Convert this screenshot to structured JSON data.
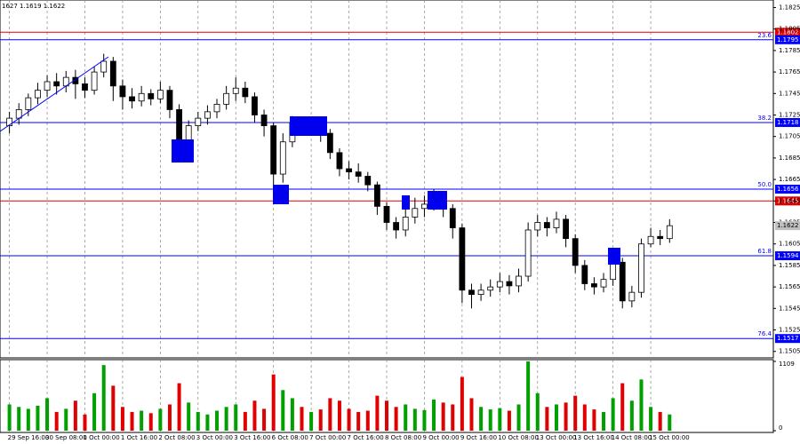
{
  "chart_data": {
    "type": "candlestick",
    "header": "1627 1.1619 1.1622",
    "up_color": "#ffffff",
    "down_color": "#000000",
    "wick_color": "#000000",
    "volume_up_color": "#00a000",
    "volume_down_color": "#e00000",
    "xlim": [
      -1,
      81
    ],
    "xticks": [
      {
        "value": 0,
        "label": "29 Sep 16:00"
      },
      {
        "value": 4,
        "label": "30 Sep 08:00"
      },
      {
        "value": 8,
        "label": "1 Oct 00:00"
      },
      {
        "value": 12,
        "label": "1 Oct 16:00"
      },
      {
        "value": 16,
        "label": "2 Oct 08:00"
      },
      {
        "value": 20,
        "label": "3 Oct 00:00"
      },
      {
        "value": 24,
        "label": "3 Oct 16:00"
      },
      {
        "value": 28,
        "label": "6 Oct 08:00"
      },
      {
        "value": 32,
        "label": "7 Oct 00:00"
      },
      {
        "value": 36,
        "label": "7 Oct 16:00"
      },
      {
        "value": 40,
        "label": "8 Oct 08:00"
      },
      {
        "value": 44,
        "label": "9 Oct 00:00"
      },
      {
        "value": 48,
        "label": "9 Oct 16:00"
      },
      {
        "value": 52,
        "label": "10 Oct 08:00"
      },
      {
        "value": 56,
        "label": "13 Oct 00:00"
      },
      {
        "value": 60,
        "label": "13 Oct 16:00"
      },
      {
        "value": 64,
        "label": "14 Oct 08:00"
      },
      {
        "value": 68,
        "label": "15 Oct 00:00"
      }
    ],
    "ylim": [
      1.1499,
      1.1832
    ],
    "yticks": [
      1.1505,
      1.1525,
      1.1545,
      1.1565,
      1.1585,
      1.1605,
      1.1625,
      1.1645,
      1.1665,
      1.1685,
      1.1705,
      1.1725,
      1.1745,
      1.1765,
      1.1785,
      1.1805,
      1.1825
    ],
    "levels": [
      {
        "price": 1.1802,
        "color": "#e00000"
      },
      {
        "price": 1.1795,
        "fib": "23.6",
        "color": "#0000ff"
      },
      {
        "price": 1.1718,
        "fib": "38.2",
        "color": "#0000ff"
      },
      {
        "price": 1.1656,
        "fib": "50.0",
        "color": "#0000ff"
      },
      {
        "price": 1.1645,
        "color": "#e00000"
      },
      {
        "price": 1.1594,
        "fib": "61.8",
        "color": "#0000ff"
      },
      {
        "price": 1.1517,
        "fib": "76.4",
        "color": "#0000ff"
      }
    ],
    "last": 1.1622,
    "open": [
      1.1715,
      1.1722,
      1.173,
      1.1741,
      1.1748,
      1.1756,
      1.1752,
      1.176,
      1.1754,
      1.1748,
      1.1765,
      1.1775,
      1.1752,
      1.1742,
      1.1738,
      1.1745,
      1.174,
      1.1748,
      1.173,
      1.1698,
      1.1715,
      1.1722,
      1.1728,
      1.1735,
      1.1745,
      1.175,
      1.1742,
      1.1725,
      1.1715,
      1.167,
      1.17,
      1.1718,
      1.1712,
      1.1714,
      1.1708,
      1.169,
      1.1675,
      1.1672,
      1.1668,
      1.166,
      1.164,
      1.1625,
      1.1618,
      1.163,
      1.1638,
      1.1642,
      1.165,
      1.1638,
      1.162,
      1.1562,
      1.1558,
      1.1562,
      1.1565,
      1.157,
      1.1566,
      1.1575,
      1.1618,
      1.1625,
      1.162,
      1.1628,
      1.161,
      1.1585,
      1.1568,
      1.1565,
      1.1572,
      1.1588,
      1.1552,
      1.156,
      1.1605,
      1.1612,
      1.161
    ],
    "high": [
      1.1728,
      1.1736,
      1.1745,
      1.1755,
      1.1762,
      1.1764,
      1.1766,
      1.1767,
      1.176,
      1.177,
      1.1782,
      1.1779,
      1.1758,
      1.175,
      1.1752,
      1.1749,
      1.1756,
      1.1752,
      1.1735,
      1.172,
      1.1728,
      1.1734,
      1.174,
      1.1752,
      1.176,
      1.1756,
      1.1746,
      1.173,
      1.1718,
      1.1708,
      1.1724,
      1.1722,
      1.172,
      1.1719,
      1.1712,
      1.1694,
      1.1682,
      1.168,
      1.1672,
      1.1663,
      1.1644,
      1.163,
      1.164,
      1.1648,
      1.165,
      1.1656,
      1.1654,
      1.1642,
      1.1624,
      1.1568,
      1.1568,
      1.1572,
      1.1578,
      1.1576,
      1.1582,
      1.1625,
      1.1632,
      1.163,
      1.1635,
      1.1632,
      1.1614,
      1.159,
      1.1574,
      1.1578,
      1.1595,
      1.1592,
      1.1566,
      1.161,
      1.162,
      1.1618,
      1.1628
    ],
    "low": [
      1.1708,
      1.1716,
      1.1724,
      1.1735,
      1.1742,
      1.1744,
      1.1746,
      1.174,
      1.1741,
      1.1744,
      1.176,
      1.1738,
      1.173,
      1.1731,
      1.1733,
      1.1734,
      1.1736,
      1.1722,
      1.169,
      1.1694,
      1.171,
      1.1716,
      1.1722,
      1.173,
      1.1738,
      1.1736,
      1.1718,
      1.1705,
      1.165,
      1.1662,
      1.1695,
      1.1706,
      1.1706,
      1.17,
      1.1684,
      1.1668,
      1.1665,
      1.1662,
      1.1654,
      1.1632,
      1.1618,
      1.161,
      1.1612,
      1.1624,
      1.163,
      1.1636,
      1.163,
      1.161,
      1.155,
      1.1545,
      1.1552,
      1.1556,
      1.156,
      1.1558,
      1.156,
      1.157,
      1.1612,
      1.1612,
      1.1615,
      1.1602,
      1.1578,
      1.1562,
      1.1558,
      1.156,
      1.1566,
      1.1545,
      1.1546,
      1.1555,
      1.1602,
      1.1604,
      1.1606
    ],
    "close": [
      1.1722,
      1.173,
      1.1741,
      1.1748,
      1.1756,
      1.1752,
      1.176,
      1.1754,
      1.1748,
      1.1765,
      1.1775,
      1.1752,
      1.1742,
      1.1738,
      1.1745,
      1.174,
      1.1748,
      1.173,
      1.1698,
      1.1715,
      1.1722,
      1.1728,
      1.1735,
      1.1745,
      1.175,
      1.1742,
      1.1725,
      1.1715,
      1.167,
      1.17,
      1.1718,
      1.1712,
      1.1714,
      1.1708,
      1.169,
      1.1675,
      1.1672,
      1.1668,
      1.166,
      1.164,
      1.1625,
      1.1618,
      1.163,
      1.1638,
      1.1642,
      1.165,
      1.1638,
      1.162,
      1.1562,
      1.1558,
      1.1562,
      1.1565,
      1.157,
      1.1566,
      1.1575,
      1.1618,
      1.1625,
      1.162,
      1.1628,
      1.161,
      1.1585,
      1.1568,
      1.1565,
      1.1572,
      1.1588,
      1.1552,
      1.156,
      1.1605,
      1.1612,
      1.161,
      1.1622
    ],
    "volume": [
      420,
      380,
      350,
      400,
      520,
      300,
      350,
      480,
      260,
      600,
      1050,
      720,
      380,
      300,
      320,
      280,
      350,
      420,
      760,
      450,
      300,
      260,
      320,
      380,
      420,
      300,
      480,
      350,
      900,
      650,
      520,
      380,
      300,
      340,
      520,
      480,
      350,
      300,
      320,
      560,
      480,
      380,
      420,
      350,
      330,
      500,
      450,
      420,
      860,
      520,
      380,
      340,
      360,
      320,
      420,
      1109,
      600,
      380,
      420,
      450,
      560,
      420,
      340,
      300,
      520,
      760,
      480,
      820,
      380,
      300,
      260
    ],
    "volume_ylim": [
      0,
      1109
    ],
    "volume_yticks": [
      0,
      1109
    ]
  }
}
